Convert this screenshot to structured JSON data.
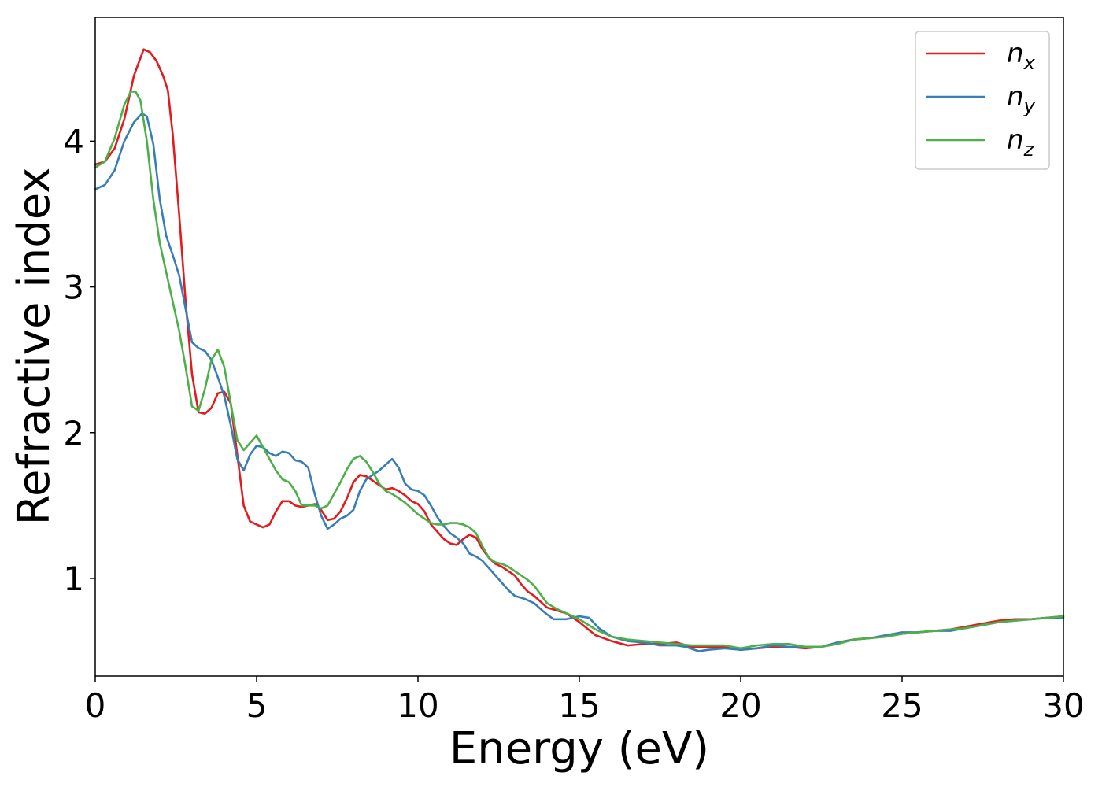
{
  "chart_data": {
    "type": "line",
    "title": "",
    "xlabel": "Energy (eV)",
    "ylabel": "Refractive index",
    "xlim": [
      0,
      30
    ],
    "ylim": [
      0.33,
      4.85
    ],
    "xticks": [
      0,
      5,
      10,
      15,
      20,
      25,
      30
    ],
    "yticks": [
      1,
      2,
      3,
      4
    ],
    "grid": false,
    "legend_position": "top-right",
    "series": [
      {
        "name": "n",
        "subscript": "x",
        "color": "#e41a1c",
        "points": [
          [
            0,
            3.84
          ],
          [
            0.3,
            3.86
          ],
          [
            0.6,
            3.95
          ],
          [
            0.9,
            4.15
          ],
          [
            1.2,
            4.45
          ],
          [
            1.5,
            4.63
          ],
          [
            1.7,
            4.61
          ],
          [
            1.9,
            4.55
          ],
          [
            2.1,
            4.45
          ],
          [
            2.25,
            4.35
          ],
          [
            2.4,
            4.05
          ],
          [
            2.6,
            3.5
          ],
          [
            2.8,
            2.9
          ],
          [
            3.0,
            2.4
          ],
          [
            3.2,
            2.14
          ],
          [
            3.4,
            2.13
          ],
          [
            3.6,
            2.17
          ],
          [
            3.8,
            2.27
          ],
          [
            4.0,
            2.28
          ],
          [
            4.2,
            2.2
          ],
          [
            4.4,
            1.85
          ],
          [
            4.6,
            1.5
          ],
          [
            4.8,
            1.39
          ],
          [
            5.0,
            1.37
          ],
          [
            5.2,
            1.35
          ],
          [
            5.4,
            1.37
          ],
          [
            5.6,
            1.46
          ],
          [
            5.8,
            1.53
          ],
          [
            6.0,
            1.53
          ],
          [
            6.2,
            1.5
          ],
          [
            6.4,
            1.49
          ],
          [
            6.6,
            1.5
          ],
          [
            6.8,
            1.51
          ],
          [
            7.0,
            1.47
          ],
          [
            7.2,
            1.4
          ],
          [
            7.4,
            1.41
          ],
          [
            7.6,
            1.46
          ],
          [
            7.8,
            1.55
          ],
          [
            8.0,
            1.66
          ],
          [
            8.2,
            1.71
          ],
          [
            8.4,
            1.7
          ],
          [
            8.6,
            1.67
          ],
          [
            8.8,
            1.64
          ],
          [
            9.0,
            1.61
          ],
          [
            9.2,
            1.62
          ],
          [
            9.4,
            1.6
          ],
          [
            9.6,
            1.57
          ],
          [
            9.8,
            1.53
          ],
          [
            10.0,
            1.51
          ],
          [
            10.2,
            1.46
          ],
          [
            10.4,
            1.37
          ],
          [
            10.6,
            1.32
          ],
          [
            10.8,
            1.27
          ],
          [
            11.0,
            1.24
          ],
          [
            11.2,
            1.23
          ],
          [
            11.4,
            1.27
          ],
          [
            11.6,
            1.3
          ],
          [
            11.8,
            1.28
          ],
          [
            12.0,
            1.2
          ],
          [
            12.2,
            1.14
          ],
          [
            12.4,
            1.1
          ],
          [
            12.6,
            1.08
          ],
          [
            12.8,
            1.05
          ],
          [
            13.0,
            1.02
          ],
          [
            13.2,
            0.96
          ],
          [
            13.4,
            0.91
          ],
          [
            13.6,
            0.88
          ],
          [
            13.8,
            0.84
          ],
          [
            14.0,
            0.8
          ],
          [
            14.3,
            0.78
          ],
          [
            14.6,
            0.76
          ],
          [
            15.0,
            0.7
          ],
          [
            15.5,
            0.61
          ],
          [
            16.0,
            0.57
          ],
          [
            16.5,
            0.54
          ],
          [
            17.0,
            0.55
          ],
          [
            17.5,
            0.55
          ],
          [
            18.0,
            0.56
          ],
          [
            18.5,
            0.53
          ],
          [
            19.0,
            0.53
          ],
          [
            19.5,
            0.53
          ],
          [
            20.0,
            0.51
          ],
          [
            20.5,
            0.52
          ],
          [
            21.0,
            0.53
          ],
          [
            21.5,
            0.53
          ],
          [
            22.0,
            0.52
          ],
          [
            22.5,
            0.53
          ],
          [
            23.0,
            0.56
          ],
          [
            23.5,
            0.58
          ],
          [
            24.0,
            0.59
          ],
          [
            24.5,
            0.6
          ],
          [
            25.0,
            0.62
          ],
          [
            25.5,
            0.63
          ],
          [
            26.0,
            0.64
          ],
          [
            26.5,
            0.65
          ],
          [
            27.0,
            0.67
          ],
          [
            27.5,
            0.69
          ],
          [
            28.0,
            0.71
          ],
          [
            28.5,
            0.72
          ],
          [
            29.0,
            0.72
          ],
          [
            29.5,
            0.73
          ],
          [
            30.0,
            0.74
          ]
        ]
      },
      {
        "name": "n",
        "subscript": "y",
        "color": "#377eb8",
        "points": [
          [
            0,
            3.67
          ],
          [
            0.3,
            3.7
          ],
          [
            0.6,
            3.8
          ],
          [
            0.9,
            4.0
          ],
          [
            1.2,
            4.13
          ],
          [
            1.45,
            4.19
          ],
          [
            1.6,
            4.17
          ],
          [
            1.8,
            3.98
          ],
          [
            2.0,
            3.6
          ],
          [
            2.2,
            3.35
          ],
          [
            2.4,
            3.22
          ],
          [
            2.6,
            3.08
          ],
          [
            2.8,
            2.85
          ],
          [
            3.0,
            2.62
          ],
          [
            3.2,
            2.58
          ],
          [
            3.4,
            2.56
          ],
          [
            3.6,
            2.5
          ],
          [
            3.8,
            2.38
          ],
          [
            4.0,
            2.25
          ],
          [
            4.2,
            2.05
          ],
          [
            4.4,
            1.82
          ],
          [
            4.6,
            1.74
          ],
          [
            4.8,
            1.85
          ],
          [
            5.0,
            1.91
          ],
          [
            5.2,
            1.9
          ],
          [
            5.4,
            1.86
          ],
          [
            5.6,
            1.84
          ],
          [
            5.8,
            1.87
          ],
          [
            6.0,
            1.86
          ],
          [
            6.2,
            1.81
          ],
          [
            6.4,
            1.8
          ],
          [
            6.6,
            1.76
          ],
          [
            6.8,
            1.58
          ],
          [
            7.0,
            1.43
          ],
          [
            7.2,
            1.34
          ],
          [
            7.4,
            1.37
          ],
          [
            7.6,
            1.41
          ],
          [
            7.8,
            1.43
          ],
          [
            8.0,
            1.47
          ],
          [
            8.2,
            1.6
          ],
          [
            8.4,
            1.68
          ],
          [
            8.6,
            1.71
          ],
          [
            8.8,
            1.74
          ],
          [
            9.0,
            1.78
          ],
          [
            9.2,
            1.82
          ],
          [
            9.4,
            1.76
          ],
          [
            9.6,
            1.65
          ],
          [
            9.8,
            1.61
          ],
          [
            10.0,
            1.6
          ],
          [
            10.2,
            1.57
          ],
          [
            10.4,
            1.5
          ],
          [
            10.6,
            1.42
          ],
          [
            10.8,
            1.36
          ],
          [
            11.0,
            1.31
          ],
          [
            11.2,
            1.28
          ],
          [
            11.4,
            1.24
          ],
          [
            11.6,
            1.17
          ],
          [
            11.8,
            1.15
          ],
          [
            12.0,
            1.12
          ],
          [
            12.2,
            1.07
          ],
          [
            12.4,
            1.02
          ],
          [
            12.6,
            0.97
          ],
          [
            12.8,
            0.92
          ],
          [
            13.0,
            0.88
          ],
          [
            13.3,
            0.86
          ],
          [
            13.6,
            0.83
          ],
          [
            13.9,
            0.77
          ],
          [
            14.2,
            0.72
          ],
          [
            14.6,
            0.72
          ],
          [
            15.0,
            0.74
          ],
          [
            15.3,
            0.73
          ],
          [
            15.6,
            0.66
          ],
          [
            16.0,
            0.6
          ],
          [
            16.5,
            0.57
          ],
          [
            17.0,
            0.56
          ],
          [
            17.5,
            0.54
          ],
          [
            18.0,
            0.54
          ],
          [
            18.3,
            0.53
          ],
          [
            18.7,
            0.5
          ],
          [
            19.0,
            0.51
          ],
          [
            19.5,
            0.52
          ],
          [
            20.0,
            0.51
          ],
          [
            20.5,
            0.52
          ],
          [
            21.0,
            0.54
          ],
          [
            21.5,
            0.53
          ],
          [
            22.0,
            0.53
          ],
          [
            22.5,
            0.53
          ],
          [
            23.0,
            0.56
          ],
          [
            23.5,
            0.58
          ],
          [
            24.0,
            0.59
          ],
          [
            24.5,
            0.61
          ],
          [
            25.0,
            0.63
          ],
          [
            25.5,
            0.63
          ],
          [
            26.0,
            0.64
          ],
          [
            26.5,
            0.64
          ],
          [
            27.0,
            0.66
          ],
          [
            27.5,
            0.68
          ],
          [
            28.0,
            0.7
          ],
          [
            28.5,
            0.71
          ],
          [
            29.0,
            0.72
          ],
          [
            29.5,
            0.73
          ],
          [
            30.0,
            0.73
          ]
        ]
      },
      {
        "name": "n",
        "subscript": "z",
        "color": "#4daf4a",
        "points": [
          [
            0,
            3.82
          ],
          [
            0.3,
            3.86
          ],
          [
            0.6,
            4.02
          ],
          [
            0.9,
            4.25
          ],
          [
            1.1,
            4.34
          ],
          [
            1.25,
            4.34
          ],
          [
            1.4,
            4.28
          ],
          [
            1.6,
            4.0
          ],
          [
            1.8,
            3.6
          ],
          [
            2.0,
            3.3
          ],
          [
            2.2,
            3.1
          ],
          [
            2.4,
            2.9
          ],
          [
            2.6,
            2.7
          ],
          [
            2.8,
            2.45
          ],
          [
            3.0,
            2.18
          ],
          [
            3.2,
            2.15
          ],
          [
            3.4,
            2.3
          ],
          [
            3.6,
            2.5
          ],
          [
            3.8,
            2.57
          ],
          [
            4.0,
            2.45
          ],
          [
            4.2,
            2.2
          ],
          [
            4.4,
            1.95
          ],
          [
            4.6,
            1.88
          ],
          [
            4.8,
            1.93
          ],
          [
            5.0,
            1.98
          ],
          [
            5.2,
            1.9
          ],
          [
            5.4,
            1.82
          ],
          [
            5.6,
            1.74
          ],
          [
            5.8,
            1.68
          ],
          [
            6.0,
            1.66
          ],
          [
            6.2,
            1.6
          ],
          [
            6.4,
            1.5
          ],
          [
            6.6,
            1.5
          ],
          [
            6.8,
            1.5
          ],
          [
            7.0,
            1.48
          ],
          [
            7.2,
            1.5
          ],
          [
            7.4,
            1.58
          ],
          [
            7.6,
            1.66
          ],
          [
            7.8,
            1.75
          ],
          [
            8.0,
            1.82
          ],
          [
            8.2,
            1.84
          ],
          [
            8.4,
            1.8
          ],
          [
            8.6,
            1.73
          ],
          [
            8.8,
            1.65
          ],
          [
            9.0,
            1.6
          ],
          [
            9.2,
            1.58
          ],
          [
            9.4,
            1.55
          ],
          [
            9.6,
            1.52
          ],
          [
            9.8,
            1.48
          ],
          [
            10.0,
            1.44
          ],
          [
            10.2,
            1.41
          ],
          [
            10.4,
            1.38
          ],
          [
            10.6,
            1.37
          ],
          [
            10.8,
            1.37
          ],
          [
            11.0,
            1.38
          ],
          [
            11.2,
            1.38
          ],
          [
            11.4,
            1.37
          ],
          [
            11.6,
            1.35
          ],
          [
            11.8,
            1.31
          ],
          [
            12.0,
            1.22
          ],
          [
            12.2,
            1.14
          ],
          [
            12.4,
            1.11
          ],
          [
            12.6,
            1.1
          ],
          [
            12.8,
            1.08
          ],
          [
            13.0,
            1.05
          ],
          [
            13.2,
            1.02
          ],
          [
            13.4,
            0.99
          ],
          [
            13.6,
            0.95
          ],
          [
            13.8,
            0.89
          ],
          [
            14.0,
            0.83
          ],
          [
            14.3,
            0.79
          ],
          [
            14.6,
            0.76
          ],
          [
            15.0,
            0.72
          ],
          [
            15.5,
            0.65
          ],
          [
            16.0,
            0.6
          ],
          [
            16.5,
            0.58
          ],
          [
            17.0,
            0.57
          ],
          [
            17.5,
            0.56
          ],
          [
            18.0,
            0.55
          ],
          [
            18.5,
            0.54
          ],
          [
            19.0,
            0.54
          ],
          [
            19.5,
            0.54
          ],
          [
            20.0,
            0.52
          ],
          [
            20.5,
            0.54
          ],
          [
            21.0,
            0.55
          ],
          [
            21.5,
            0.55
          ],
          [
            22.0,
            0.53
          ],
          [
            22.5,
            0.53
          ],
          [
            23.0,
            0.55
          ],
          [
            23.5,
            0.58
          ],
          [
            24.0,
            0.59
          ],
          [
            24.5,
            0.6
          ],
          [
            25.0,
            0.62
          ],
          [
            25.5,
            0.63
          ],
          [
            26.0,
            0.64
          ],
          [
            26.5,
            0.65
          ],
          [
            27.0,
            0.66
          ],
          [
            27.5,
            0.68
          ],
          [
            28.0,
            0.7
          ],
          [
            28.5,
            0.71
          ],
          [
            29.0,
            0.72
          ],
          [
            29.5,
            0.73
          ],
          [
            30.0,
            0.74
          ]
        ]
      }
    ]
  }
}
